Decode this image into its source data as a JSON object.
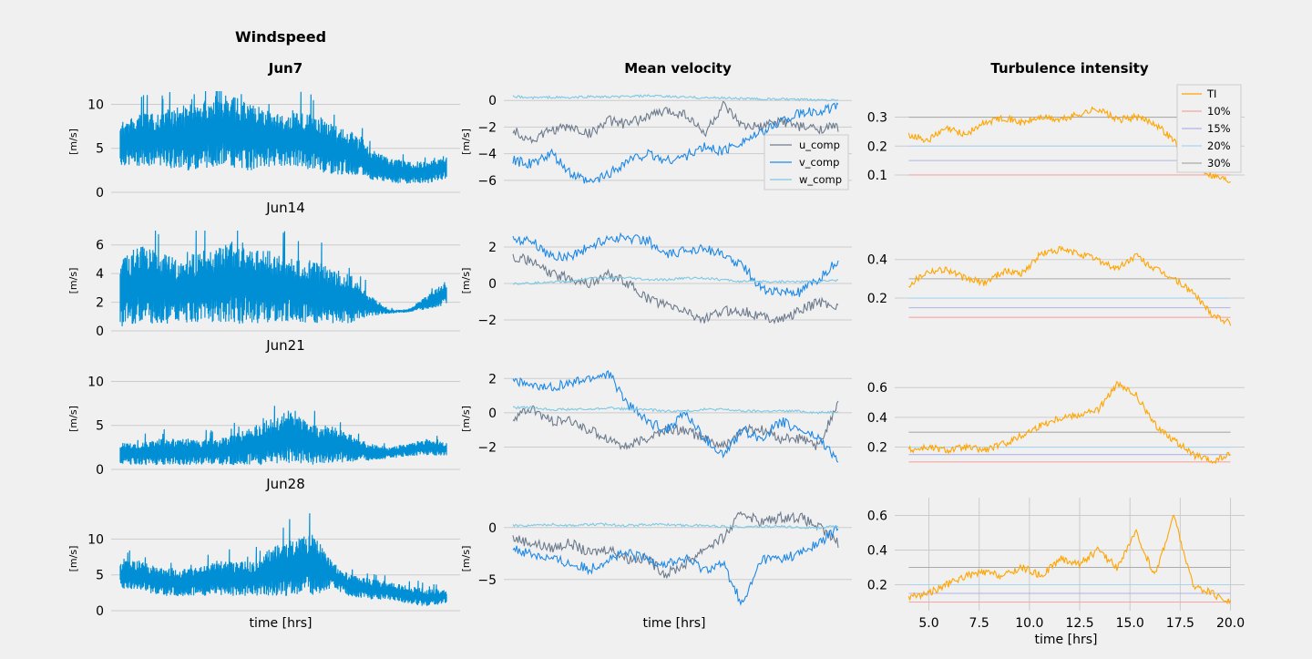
{
  "figure": {
    "col_titles": [
      "Windspeed",
      "Mean velocity",
      "Turbulence intensity"
    ],
    "xlabel": "time [hrs]",
    "ylabel": "[m/s]",
    "colors": {
      "windspeed": "#008fd5",
      "u": "#6d7b8d",
      "v": "#1e88e5",
      "w": "#7ec8e3",
      "ti": "#ffa500",
      "th10": "#f4a6a6",
      "th15": "#b0b4e8",
      "th20": "#a8d4f0",
      "th30": "#aaaaaa",
      "grid": "#cbcbcb"
    }
  },
  "chart_data": [
    {
      "type": "line",
      "panel": "windspeed",
      "title": "Jun7",
      "ylabel": "[m/s]",
      "xlim": [
        4.0,
        20.0
      ],
      "ylim": [
        0,
        11.5
      ],
      "yticks": [
        "0",
        "5",
        "10"
      ],
      "xticks": [],
      "fill_style": "dense-noise",
      "series": [
        {
          "name": "windspeed",
          "lo": [
            3,
            3,
            3,
            2.5,
            2.5,
            3,
            2.5,
            2.5,
            3,
            3,
            2.5,
            2,
            2,
            1.5,
            1,
            1,
            1,
            1.5
          ],
          "hi": [
            8,
            9,
            9,
            10,
            10,
            11,
            11,
            10,
            9,
            9,
            9,
            8,
            7,
            5,
            4,
            3.5,
            3.5,
            4
          ]
        }
      ]
    },
    {
      "type": "line",
      "panel": "windspeed",
      "title": "Jun14",
      "ylabel": "[m/s]",
      "xlim": [
        4.0,
        20.0
      ],
      "ylim": [
        0,
        7
      ],
      "yticks": [
        "0",
        "2",
        "4",
        "6"
      ],
      "xticks": [],
      "fill_style": "dense-noise",
      "series": [
        {
          "name": "windspeed",
          "lo": [
            0.3,
            0.5,
            0.5,
            0.5,
            0.6,
            0.6,
            0.5,
            0.5,
            0.5,
            0.7,
            0.5,
            0.5,
            0.5,
            1,
            1.2,
            1.3,
            1.5,
            1.8
          ],
          "hi": [
            5,
            6,
            5.5,
            5,
            5.5,
            6,
            6.5,
            6,
            5.5,
            5,
            5,
            4.5,
            4,
            2.5,
            1.5,
            1.5,
            2.5,
            3.5
          ]
        }
      ]
    },
    {
      "type": "line",
      "panel": "windspeed",
      "title": "Jun21",
      "ylabel": "[m/s]",
      "xlim": [
        4.0,
        20.0
      ],
      "ylim": [
        0,
        11.5
      ],
      "yticks": [
        "0",
        "5",
        "10"
      ],
      "xticks": [],
      "fill_style": "dense-noise",
      "series": [
        {
          "name": "windspeed",
          "lo": [
            0.5,
            0.5,
            0.5,
            0.5,
            0.5,
            0.5,
            0.5,
            0.5,
            0.5,
            0.8,
            0.5,
            0.8,
            0.8,
            1,
            1.2,
            1.5,
            1.6,
            1.5
          ],
          "hi": [
            3,
            3,
            3.5,
            3.5,
            3.5,
            3.5,
            4,
            5,
            6,
            7,
            5,
            5,
            4,
            3,
            2.5,
            3,
            3.5,
            3
          ]
        }
      ]
    },
    {
      "type": "line",
      "panel": "windspeed",
      "title": "Jun28",
      "ylabel": "[m/s]",
      "xlim": [
        4.0,
        20.0
      ],
      "ylim": [
        0,
        14.5
      ],
      "yticks": [
        "0",
        "5",
        "10"
      ],
      "xticks": [],
      "fill_style": "dense-noise",
      "series": [
        {
          "name": "windspeed",
          "lo": [
            3,
            3,
            2,
            2,
            2,
            2,
            2,
            2,
            2,
            2,
            2,
            3,
            2,
            1.5,
            1.5,
            1,
            0.5,
            1
          ],
          "hi": [
            7,
            7,
            6,
            6,
            6,
            7,
            7,
            7,
            9,
            10,
            11,
            7,
            5,
            4.5,
            4,
            3.5,
            3,
            3
          ]
        }
      ]
    },
    {
      "type": "line",
      "panel": "mean-velocity",
      "title": "Mean velocity",
      "ylabel": "[m/s]",
      "xlim": [
        4.0,
        20.0
      ],
      "ylim": [
        -6.9,
        0.7
      ],
      "yticks": [
        "−6",
        "−4",
        "−2",
        "0"
      ],
      "legend": "right",
      "series": [
        {
          "name": "u_comp",
          "color_key": "u",
          "values": [
            -2.2,
            -3.0,
            -2.2,
            -2.0,
            -2.5,
            -1.5,
            -1.8,
            -1.2,
            -0.8,
            -1.0,
            -2.5,
            -0.4,
            -2.0,
            -2.0,
            -1.5,
            -2.0,
            -2.1,
            -2.0
          ]
        },
        {
          "name": "v_comp",
          "color_key": "v",
          "values": [
            -4.5,
            -4.8,
            -4.0,
            -5.5,
            -6.2,
            -5.5,
            -4.5,
            -4.0,
            -4.5,
            -4.2,
            -3.5,
            -3.8,
            -3.0,
            -2.5,
            -1.5,
            -1.0,
            -0.8,
            -0.5
          ]
        },
        {
          "name": "w_comp",
          "color_key": "w",
          "values": [
            0.3,
            0.2,
            0.25,
            0.2,
            0.3,
            0.25,
            0.3,
            0.35,
            0.3,
            0.25,
            0.2,
            0.2,
            0.15,
            0.1,
            0.1,
            0.05,
            0.05,
            0.05
          ]
        }
      ]
    },
    {
      "type": "line",
      "panel": "mean-velocity",
      "title": "",
      "ylabel": "[m/s]",
      "xlim": [
        4.0,
        20.0
      ],
      "ylim": [
        -2.6,
        2.9
      ],
      "yticks": [
        "−2",
        "0",
        "2"
      ],
      "series": [
        {
          "name": "u_comp",
          "color_key": "u",
          "values": [
            1.5,
            1.2,
            0.5,
            0.3,
            0.0,
            0.5,
            0.0,
            -0.8,
            -1.2,
            -1.5,
            -2.0,
            -1.5,
            -1.5,
            -1.8,
            -2.0,
            -1.5,
            -1.0,
            -1.3
          ]
        },
        {
          "name": "v_comp",
          "color_key": "v",
          "values": [
            2.5,
            2.3,
            1.5,
            1.5,
            2.0,
            2.5,
            2.5,
            2.4,
            1.5,
            1.8,
            2.0,
            1.5,
            1.0,
            -0.3,
            -0.5,
            -0.5,
            0.2,
            1.3
          ]
        },
        {
          "name": "w_comp",
          "color_key": "w",
          "values": [
            0.0,
            0.0,
            0.1,
            0.1,
            0.3,
            0.3,
            0.3,
            0.2,
            0.2,
            0.3,
            0.3,
            0.2,
            0.1,
            0.1,
            0.1,
            0.1,
            0.1,
            0.2
          ]
        }
      ]
    },
    {
      "type": "line",
      "panel": "mean-velocity",
      "title": "",
      "ylabel": "[m/s]",
      "xlim": [
        4.0,
        20.0
      ],
      "ylim": [
        -3.3,
        2.6
      ],
      "yticks": [
        "−2",
        "0",
        "2"
      ],
      "series": [
        {
          "name": "u_comp",
          "color_key": "u",
          "values": [
            -0.3,
            0.2,
            -0.5,
            -0.5,
            -1.0,
            -1.5,
            -2.0,
            -1.5,
            -1.0,
            -1.0,
            -1.5,
            -2.0,
            -1.0,
            -1.0,
            -1.5,
            -1.5,
            -2.0,
            0.7
          ]
        },
        {
          "name": "v_comp",
          "color_key": "v",
          "values": [
            2.0,
            1.5,
            1.5,
            1.7,
            2.0,
            2.3,
            0.5,
            -0.5,
            -1.0,
            0.0,
            -1.5,
            -2.5,
            -1.0,
            -1.5,
            -0.5,
            -1.0,
            -1.5,
            -2.8
          ]
        },
        {
          "name": "w_comp",
          "color_key": "w",
          "values": [
            0.3,
            0.3,
            0.2,
            0.2,
            0.2,
            0.3,
            0.2,
            0.2,
            0.1,
            0.1,
            0.2,
            0.2,
            0.1,
            0.1,
            0.1,
            0.1,
            0.0,
            0.1
          ]
        }
      ]
    },
    {
      "type": "line",
      "panel": "mean-velocity",
      "title": "",
      "ylabel": "[m/s]",
      "xlim": [
        4.0,
        20.0
      ],
      "ylim": [
        -8.0,
        2.0
      ],
      "yticks": [
        "−5",
        "0"
      ],
      "series": [
        {
          "name": "u_comp",
          "color_key": "u",
          "values": [
            -1.0,
            -1.5,
            -2.0,
            -1.5,
            -2.5,
            -2.0,
            -3.0,
            -3.0,
            -4.5,
            -3.5,
            -2.0,
            -1.0,
            1.5,
            0.5,
            1.0,
            1.0,
            0.0,
            -1.5
          ]
        },
        {
          "name": "v_comp",
          "color_key": "v",
          "values": [
            -2.0,
            -2.5,
            -3.0,
            -3.5,
            -4.0,
            -3.0,
            -2.5,
            -3.0,
            -3.5,
            -3.0,
            -4.0,
            -3.5,
            -7.5,
            -3.0,
            -3.0,
            -2.5,
            -1.5,
            0.0
          ]
        },
        {
          "name": "w_comp",
          "color_key": "w",
          "values": [
            0.2,
            0.2,
            0.3,
            0.2,
            0.3,
            0.3,
            0.2,
            0.3,
            0.3,
            0.2,
            0.2,
            0.1,
            0.1,
            0.1,
            0.1,
            0.0,
            0.0,
            0.1
          ]
        }
      ]
    },
    {
      "type": "line",
      "panel": "turbulence-intensity",
      "title": "Turbulence intensity",
      "ylabel": "",
      "xlim": [
        3.3,
        20.7
      ],
      "ylim": [
        0.04,
        0.39
      ],
      "yticks": [
        "0.1",
        "0.2",
        "0.3"
      ],
      "legend": "top-right",
      "xmin": 4.0,
      "xmax": 20.0,
      "thresholds": [
        {
          "name": "10%",
          "value": 0.1,
          "color_key": "th10"
        },
        {
          "name": "15%",
          "value": 0.15,
          "color_key": "th15"
        },
        {
          "name": "20%",
          "value": 0.2,
          "color_key": "th20"
        },
        {
          "name": "30%",
          "value": 0.3,
          "color_key": "th30"
        }
      ],
      "series": [
        {
          "name": "TI",
          "color_key": "ti",
          "values": [
            0.24,
            0.22,
            0.26,
            0.24,
            0.28,
            0.3,
            0.28,
            0.3,
            0.29,
            0.31,
            0.33,
            0.29,
            0.3,
            0.28,
            0.22,
            0.14,
            0.1,
            0.08
          ]
        }
      ]
    },
    {
      "type": "line",
      "panel": "turbulence-intensity",
      "title": "",
      "ylabel": "",
      "xlim": [
        3.3,
        20.7
      ],
      "ylim": [
        0.03,
        0.55
      ],
      "yticks": [
        "0.2",
        "0.4"
      ],
      "xmin": 4.0,
      "xmax": 20.0,
      "thresholds": [
        {
          "name": "10%",
          "value": 0.1,
          "color_key": "th10"
        },
        {
          "name": "15%",
          "value": 0.15,
          "color_key": "th15"
        },
        {
          "name": "20%",
          "value": 0.2,
          "color_key": "th20"
        },
        {
          "name": "30%",
          "value": 0.3,
          "color_key": "th30"
        }
      ],
      "series": [
        {
          "name": "TI",
          "color_key": "ti",
          "values": [
            0.27,
            0.34,
            0.35,
            0.3,
            0.28,
            0.34,
            0.33,
            0.43,
            0.45,
            0.43,
            0.4,
            0.35,
            0.42,
            0.35,
            0.3,
            0.23,
            0.12,
            0.07
          ]
        }
      ]
    },
    {
      "type": "line",
      "panel": "turbulence-intensity",
      "title": "",
      "ylabel": "",
      "xlim": [
        3.3,
        20.7
      ],
      "ylim": [
        0.05,
        0.73
      ],
      "yticks": [
        "0.2",
        "0.4",
        "0.6"
      ],
      "xmin": 4.0,
      "xmax": 20.0,
      "thresholds": [
        {
          "name": "10%",
          "value": 0.1,
          "color_key": "th10"
        },
        {
          "name": "15%",
          "value": 0.15,
          "color_key": "th15"
        },
        {
          "name": "20%",
          "value": 0.2,
          "color_key": "th20"
        },
        {
          "name": "30%",
          "value": 0.3,
          "color_key": "th30"
        }
      ],
      "series": [
        {
          "name": "TI",
          "color_key": "ti",
          "values": [
            0.18,
            0.2,
            0.18,
            0.2,
            0.18,
            0.22,
            0.28,
            0.35,
            0.4,
            0.42,
            0.45,
            0.62,
            0.55,
            0.35,
            0.25,
            0.15,
            0.1,
            0.15
          ]
        }
      ]
    },
    {
      "type": "line",
      "panel": "turbulence-intensity",
      "title": "",
      "ylabel": "",
      "xlim": [
        3.3,
        20.7
      ],
      "ylim": [
        0.05,
        0.65
      ],
      "yticks": [
        "0.2",
        "0.4",
        "0.6"
      ],
      "xmin": 4.0,
      "xmax": 20.0,
      "show_vgrid": true,
      "xticks": [
        "5.0",
        "7.5",
        "10.0",
        "12.5",
        "15.0",
        "17.5",
        "20.0"
      ],
      "thresholds": [
        {
          "name": "10%",
          "value": 0.1,
          "color_key": "th10"
        },
        {
          "name": "15%",
          "value": 0.15,
          "color_key": "th15"
        },
        {
          "name": "20%",
          "value": 0.2,
          "color_key": "th20"
        },
        {
          "name": "30%",
          "value": 0.3,
          "color_key": "th30"
        }
      ],
      "series": [
        {
          "name": "TI",
          "color_key": "ti",
          "values": [
            0.13,
            0.15,
            0.2,
            0.25,
            0.27,
            0.25,
            0.3,
            0.25,
            0.35,
            0.32,
            0.4,
            0.3,
            0.5,
            0.25,
            0.6,
            0.2,
            0.15,
            0.1
          ]
        }
      ]
    }
  ]
}
